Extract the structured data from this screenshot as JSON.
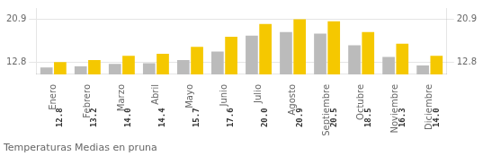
{
  "chart_data": {
    "type": "bar",
    "title": "Temperaturas Medias en pruna",
    "categories": [
      "Enero",
      "Febrero",
      "Marzo",
      "Abril",
      "Mayo",
      "Junio",
      "Julio",
      "Agosto",
      "Septiembre",
      "Octubre",
      "Noviembre",
      "Diciembre"
    ],
    "series": [
      {
        "color": "#BBBBBB",
        "values": [
          11.8,
          12.0,
          12.5,
          12.6,
          13.2,
          14.8,
          17.8,
          18.5,
          18.2,
          16.0,
          13.8,
          12.2
        ]
      },
      {
        "color": "#F5C800",
        "values": [
          12.8,
          13.2,
          14.0,
          14.4,
          15.7,
          17.6,
          20.0,
          20.9,
          20.5,
          18.5,
          16.3,
          14.0
        ],
        "data_labels": true,
        "value_labels": [
          "12.8",
          "13.2",
          "14.0",
          "14.4",
          "15.7",
          "17.6",
          "20.0",
          "20.9",
          "20.5",
          "18.5",
          "16.3",
          "14.0"
        ]
      }
    ],
    "ylim": [
      10.5,
      23.0
    ],
    "yticks": [
      12.8,
      20.9
    ],
    "y2lim": [
      10.5,
      23.0
    ],
    "y2ticks": [
      12.8,
      20.9
    ],
    "grid": true
  }
}
